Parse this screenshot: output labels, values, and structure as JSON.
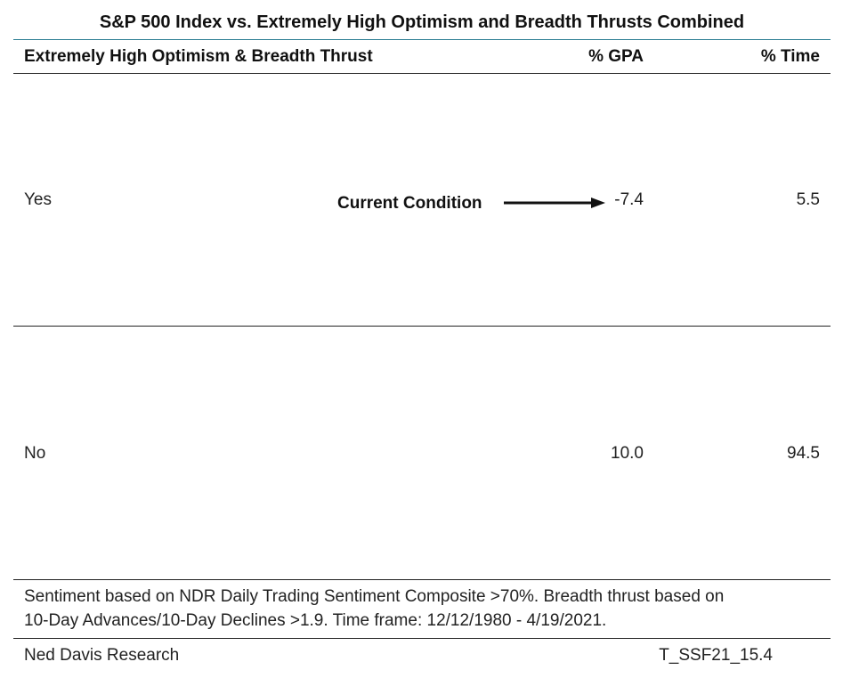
{
  "chart_data": {
    "type": "table",
    "title": "S&P 500 Index vs. Extremely High Optimism and Breadth Thrusts Combined",
    "columns": [
      "Extremely High Optimism & Breadth Thrust",
      "% GPA",
      "% Time"
    ],
    "rows": [
      {
        "label": "Yes",
        "gpa": "-7.4",
        "time": "5.5"
      },
      {
        "label": "No",
        "gpa": "10.0",
        "time": "94.5"
      }
    ],
    "annotation": "Current Condition",
    "note_lines": [
      "Sentiment based on NDR Daily Trading Sentiment Composite >70%. Breadth thrust based on",
      "10-Day Advances/10-Day Declines >1.9. Time frame: 12/12/1980 - 4/19/2021."
    ],
    "source": "Ned Davis Research",
    "code": "T_SSF21_15.4"
  },
  "colors": {
    "title_rule": "#2f7f95",
    "text": "#222222"
  }
}
